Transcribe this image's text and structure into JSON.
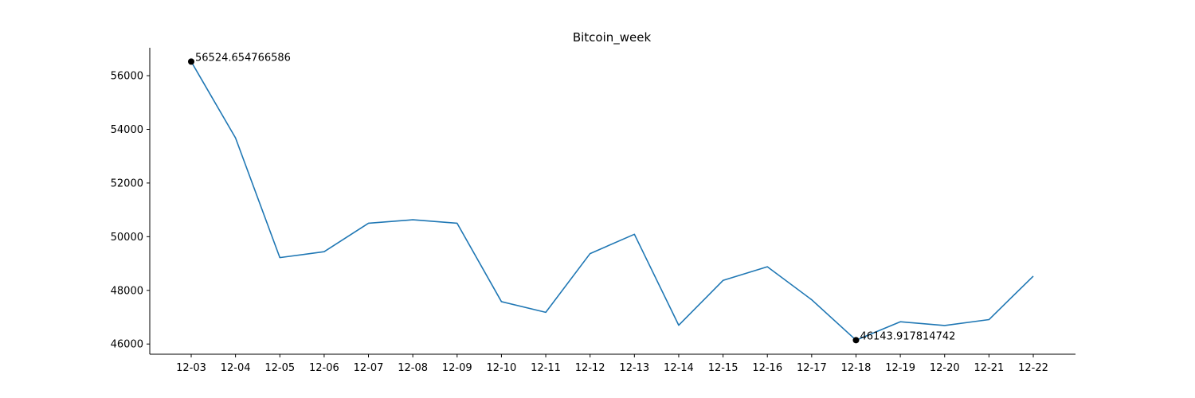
{
  "chart_data": {
    "type": "line",
    "title": "Bitcoin_week",
    "xlabel": "",
    "ylabel": "",
    "categories": [
      "12-03",
      "12-04",
      "12-05",
      "12-06",
      "12-07",
      "12-08",
      "12-09",
      "12-10",
      "12-11",
      "12-12",
      "12-13",
      "12-14",
      "12-15",
      "12-16",
      "12-17",
      "12-18",
      "12-19",
      "12-20",
      "12-21",
      "12-22"
    ],
    "series": [
      {
        "values": [
          56524.654766586,
          53680,
          49220,
          49440,
          50500,
          50630,
          50500,
          47580,
          47180,
          49370,
          50090,
          46700,
          48370,
          48880,
          47650,
          46143.917814742,
          46830,
          46690,
          46910,
          48530
        ],
        "color": "#1f77b4"
      }
    ],
    "ylim": [
      45620,
      57040
    ],
    "yticks": [
      46000,
      48000,
      50000,
      52000,
      54000,
      56000
    ],
    "grid": false,
    "annotations": [
      {
        "index": 0,
        "value": 56524.654766586,
        "label": "56524.654766586",
        "marker_color": "#000000"
      },
      {
        "index": 15,
        "value": 46143.917814742,
        "label": "46143.917814742",
        "marker_color": "#000000"
      }
    ]
  }
}
